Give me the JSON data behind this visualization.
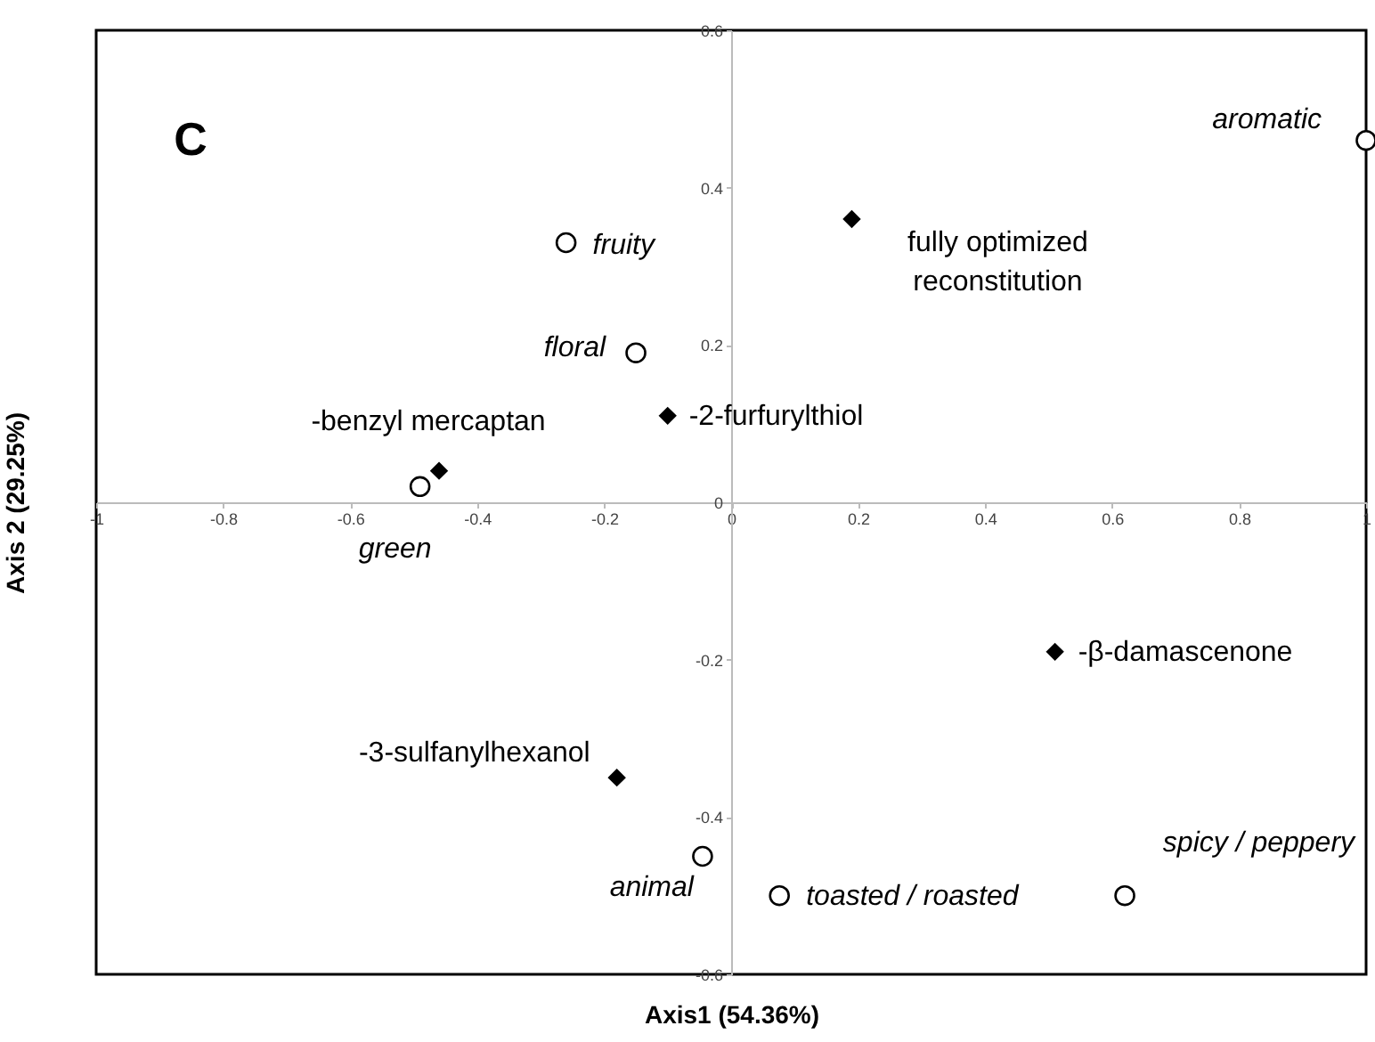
{
  "chart_data": {
    "type": "scatter",
    "xlabel": "Axis1 (54.36%)",
    "ylabel": "Axis 2 (29.25%)",
    "xlim": [
      -1,
      1
    ],
    "ylim": [
      -0.6,
      0.6
    ],
    "xticks": [
      {
        "value": -1,
        "label": "-1"
      },
      {
        "value": -0.8,
        "label": "-0.8"
      },
      {
        "value": -0.6,
        "label": "-0.6"
      },
      {
        "value": -0.4,
        "label": "-0.4"
      },
      {
        "value": -0.2,
        "label": "-0.2"
      },
      0,
      0.2,
      0.4,
      0.6,
      0.8,
      1
    ],
    "yticks": [
      {
        "value": -0.6,
        "label": "-0.6"
      },
      {
        "value": -0.4,
        "label": "-0.4"
      },
      {
        "value": -0.2,
        "label": "-0.2"
      },
      0,
      0.2,
      0.4,
      0.6
    ],
    "grid": false,
    "series": [
      {
        "color": "#000000",
        "marker": "circle",
        "x": [
          1.0,
          -0.26,
          -0.15,
          -0.49,
          -0.045,
          0.076,
          0.62
        ],
        "values": [
          0.46,
          0.33,
          0.19,
          0.02,
          -0.45,
          -0.5,
          -0.5
        ]
      },
      {
        "color": "#000000",
        "marker": "diamond",
        "x": [
          0.19,
          -0.1,
          -0.46,
          0.51,
          -0.18
        ],
        "values": [
          0.36,
          0.11,
          0.04,
          -0.19,
          -0.35
        ]
      }
    ],
    "annotations": [
      {
        "text": "aromatic",
        "x": 1.0,
        "y": 0.46
      },
      {
        "text": "fruity",
        "x": -0.26,
        "y": 0.33
      },
      {
        "text": "floral",
        "x": -0.15,
        "y": 0.19
      },
      {
        "text": "green",
        "x": -0.49,
        "y": 0.02
      },
      {
        "text": "animal",
        "x": -0.045,
        "y": -0.45
      },
      {
        "text": "toasted / roasted",
        "x": 0.076,
        "y": -0.5
      },
      {
        "text": "spicy / peppery",
        "x": 0.62,
        "y": -0.5
      },
      {
        "text": "fully optimized reconstitution",
        "x": 0.19,
        "y": 0.36
      },
      {
        "text": "-2-furfurylthiol",
        "x": -0.1,
        "y": 0.11
      },
      {
        "text": "-benzyl mercaptan",
        "x": -0.46,
        "y": 0.04
      },
      {
        "text": "-β-damascenone",
        "x": 0.51,
        "y": -0.19
      },
      {
        "text": "-3-sulfanylhexanol",
        "x": -0.18,
        "y": -0.35
      },
      "C"
    ]
  }
}
